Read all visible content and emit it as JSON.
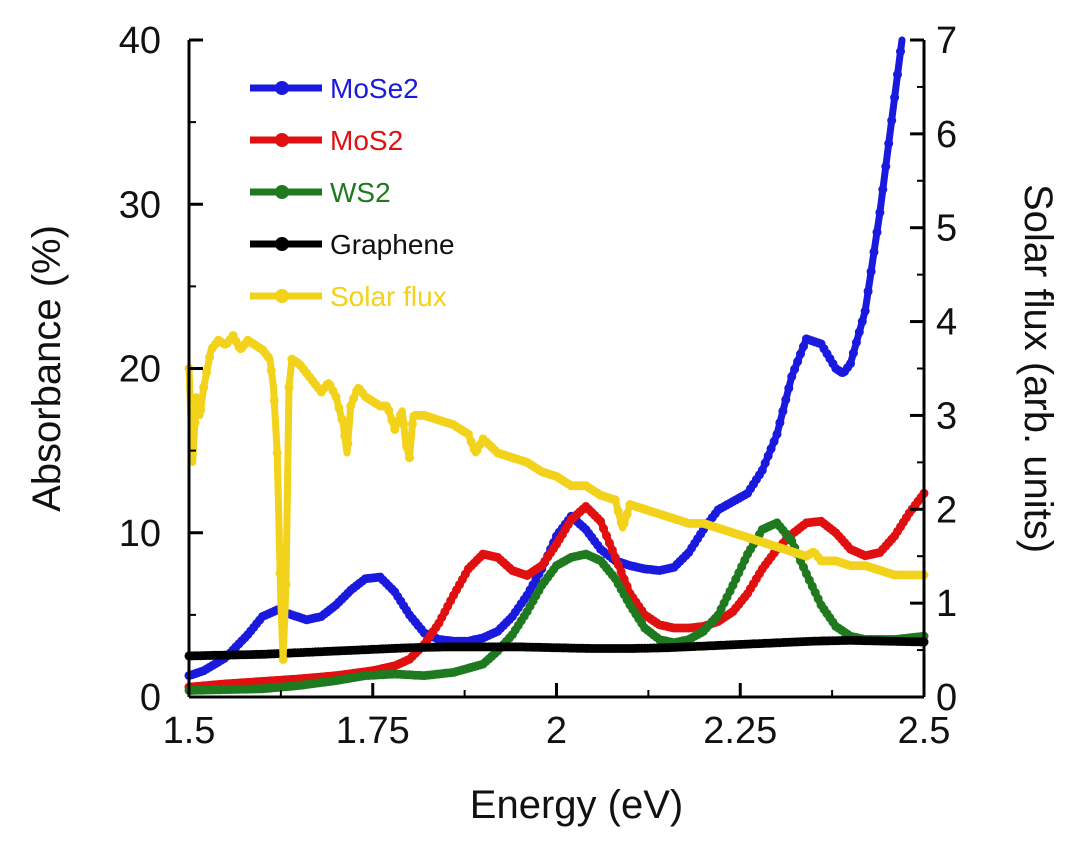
{
  "chart_data": {
    "type": "line",
    "title": "",
    "xlabel": "Energy (eV)",
    "ylabel": "Absorbance (%)",
    "y2label": "Solar flux (arb. units)",
    "xlim": [
      1.5,
      2.5
    ],
    "ylim": [
      0,
      40
    ],
    "y2lim": [
      0,
      7
    ],
    "x_ticks": [
      "1.5",
      "1.75",
      "2",
      "2.25",
      "2.5"
    ],
    "y_ticks": [
      "0",
      "10",
      "20",
      "30",
      "40"
    ],
    "y2_ticks": [
      "0",
      "1",
      "2",
      "3",
      "4",
      "5",
      "6",
      "7"
    ],
    "grid": false,
    "legend_position": "top-left",
    "series": [
      {
        "name": "MoSe2",
        "color": "#1a1adf",
        "axis": "left",
        "points": [
          [
            1.5,
            1.3
          ],
          [
            1.52,
            1.6
          ],
          [
            1.55,
            2.4
          ],
          [
            1.58,
            3.8
          ],
          [
            1.6,
            4.9
          ],
          [
            1.62,
            5.3
          ],
          [
            1.64,
            5.0
          ],
          [
            1.66,
            4.7
          ],
          [
            1.68,
            4.9
          ],
          [
            1.7,
            5.6
          ],
          [
            1.72,
            6.5
          ],
          [
            1.74,
            7.2
          ],
          [
            1.76,
            7.3
          ],
          [
            1.78,
            6.4
          ],
          [
            1.8,
            5.0
          ],
          [
            1.82,
            3.9
          ],
          [
            1.84,
            3.5
          ],
          [
            1.86,
            3.4
          ],
          [
            1.88,
            3.4
          ],
          [
            1.9,
            3.6
          ],
          [
            1.92,
            4.0
          ],
          [
            1.94,
            4.9
          ],
          [
            1.96,
            6.2
          ],
          [
            1.98,
            7.8
          ],
          [
            2.0,
            9.8
          ],
          [
            2.02,
            11.0
          ],
          [
            2.04,
            10.2
          ],
          [
            2.06,
            9.0
          ],
          [
            2.08,
            8.3
          ],
          [
            2.1,
            8.0
          ],
          [
            2.12,
            7.8
          ],
          [
            2.14,
            7.7
          ],
          [
            2.16,
            7.9
          ],
          [
            2.18,
            8.8
          ],
          [
            2.2,
            10.2
          ],
          [
            2.22,
            11.4
          ],
          [
            2.24,
            11.9
          ],
          [
            2.26,
            12.4
          ],
          [
            2.28,
            13.8
          ],
          [
            2.3,
            16.0
          ],
          [
            2.32,
            19.5
          ],
          [
            2.34,
            21.8
          ],
          [
            2.36,
            21.5
          ],
          [
            2.38,
            20.0
          ],
          [
            2.39,
            19.7
          ],
          [
            2.4,
            20.3
          ],
          [
            2.42,
            23.5
          ],
          [
            2.44,
            29.5
          ],
          [
            2.46,
            36.5
          ],
          [
            2.47,
            40
          ]
        ]
      },
      {
        "name": "MoS2",
        "color": "#e01010",
        "axis": "left",
        "points": [
          [
            1.5,
            0.6
          ],
          [
            1.55,
            0.8
          ],
          [
            1.6,
            0.95
          ],
          [
            1.65,
            1.1
          ],
          [
            1.7,
            1.3
          ],
          [
            1.75,
            1.6
          ],
          [
            1.78,
            1.9
          ],
          [
            1.8,
            2.3
          ],
          [
            1.82,
            3.2
          ],
          [
            1.84,
            4.5
          ],
          [
            1.86,
            6.2
          ],
          [
            1.88,
            7.8
          ],
          [
            1.9,
            8.7
          ],
          [
            1.92,
            8.5
          ],
          [
            1.94,
            7.7
          ],
          [
            1.96,
            7.4
          ],
          [
            1.98,
            8.0
          ],
          [
            2.0,
            9.3
          ],
          [
            2.02,
            10.8
          ],
          [
            2.04,
            11.6
          ],
          [
            2.06,
            10.7
          ],
          [
            2.08,
            8.5
          ],
          [
            2.1,
            6.3
          ],
          [
            2.12,
            5.0
          ],
          [
            2.14,
            4.4
          ],
          [
            2.16,
            4.2
          ],
          [
            2.18,
            4.2
          ],
          [
            2.2,
            4.3
          ],
          [
            2.22,
            4.6
          ],
          [
            2.24,
            5.2
          ],
          [
            2.26,
            6.3
          ],
          [
            2.28,
            7.8
          ],
          [
            2.3,
            9.0
          ],
          [
            2.32,
            9.9
          ],
          [
            2.34,
            10.6
          ],
          [
            2.36,
            10.7
          ],
          [
            2.38,
            10.0
          ],
          [
            2.4,
            9.0
          ],
          [
            2.42,
            8.6
          ],
          [
            2.44,
            8.8
          ],
          [
            2.46,
            9.8
          ],
          [
            2.48,
            11.2
          ],
          [
            2.5,
            12.4
          ]
        ]
      },
      {
        "name": "WS2",
        "color": "#1f7a1f",
        "axis": "left",
        "points": [
          [
            1.5,
            0.4
          ],
          [
            1.55,
            0.45
          ],
          [
            1.6,
            0.5
          ],
          [
            1.65,
            0.7
          ],
          [
            1.7,
            1.0
          ],
          [
            1.74,
            1.3
          ],
          [
            1.78,
            1.4
          ],
          [
            1.82,
            1.3
          ],
          [
            1.86,
            1.5
          ],
          [
            1.9,
            2.0
          ],
          [
            1.92,
            2.8
          ],
          [
            1.94,
            3.8
          ],
          [
            1.96,
            5.2
          ],
          [
            1.98,
            6.8
          ],
          [
            2.0,
            8.0
          ],
          [
            2.02,
            8.5
          ],
          [
            2.04,
            8.7
          ],
          [
            2.06,
            8.3
          ],
          [
            2.08,
            7.2
          ],
          [
            2.1,
            5.6
          ],
          [
            2.12,
            4.2
          ],
          [
            2.14,
            3.5
          ],
          [
            2.16,
            3.3
          ],
          [
            2.18,
            3.5
          ],
          [
            2.2,
            4.0
          ],
          [
            2.22,
            5.0
          ],
          [
            2.24,
            6.8
          ],
          [
            2.26,
            8.7
          ],
          [
            2.28,
            10.2
          ],
          [
            2.3,
            10.6
          ],
          [
            2.32,
            9.5
          ],
          [
            2.34,
            7.5
          ],
          [
            2.36,
            5.6
          ],
          [
            2.38,
            4.3
          ],
          [
            2.4,
            3.7
          ],
          [
            2.42,
            3.5
          ],
          [
            2.44,
            3.5
          ],
          [
            2.46,
            3.5
          ],
          [
            2.48,
            3.6
          ],
          [
            2.5,
            3.7
          ]
        ]
      },
      {
        "name": "Graphene",
        "color": "#000000",
        "axis": "left",
        "points": [
          [
            1.5,
            2.5
          ],
          [
            1.55,
            2.55
          ],
          [
            1.6,
            2.6
          ],
          [
            1.65,
            2.7
          ],
          [
            1.7,
            2.8
          ],
          [
            1.75,
            2.9
          ],
          [
            1.8,
            3.0
          ],
          [
            1.85,
            3.05
          ],
          [
            1.9,
            3.05
          ],
          [
            1.95,
            3.05
          ],
          [
            2.0,
            3.0
          ],
          [
            2.05,
            2.95
          ],
          [
            2.1,
            2.95
          ],
          [
            2.15,
            3.0
          ],
          [
            2.2,
            3.1
          ],
          [
            2.25,
            3.2
          ],
          [
            2.3,
            3.3
          ],
          [
            2.35,
            3.4
          ],
          [
            2.4,
            3.45
          ],
          [
            2.45,
            3.4
          ],
          [
            2.5,
            3.35
          ]
        ]
      },
      {
        "name": "Solar flux",
        "color": "#f2d21a",
        "axis": "right",
        "points": [
          [
            1.5,
            3.5
          ],
          [
            1.505,
            2.5
          ],
          [
            1.51,
            3.2
          ],
          [
            1.515,
            3.0
          ],
          [
            1.52,
            3.3
          ],
          [
            1.53,
            3.7
          ],
          [
            1.54,
            3.8
          ],
          [
            1.55,
            3.75
          ],
          [
            1.56,
            3.85
          ],
          [
            1.57,
            3.7
          ],
          [
            1.58,
            3.8
          ],
          [
            1.59,
            3.75
          ],
          [
            1.6,
            3.7
          ],
          [
            1.61,
            3.6
          ],
          [
            1.615,
            3.3
          ],
          [
            1.62,
            2.6
          ],
          [
            1.625,
            1.0
          ],
          [
            1.628,
            0.4
          ],
          [
            1.632,
            1.2
          ],
          [
            1.636,
            3.3
          ],
          [
            1.64,
            3.6
          ],
          [
            1.65,
            3.55
          ],
          [
            1.66,
            3.45
          ],
          [
            1.67,
            3.35
          ],
          [
            1.68,
            3.25
          ],
          [
            1.69,
            3.35
          ],
          [
            1.7,
            3.2
          ],
          [
            1.71,
            2.9
          ],
          [
            1.715,
            2.6
          ],
          [
            1.72,
            3.1
          ],
          [
            1.73,
            3.3
          ],
          [
            1.74,
            3.2
          ],
          [
            1.75,
            3.15
          ],
          [
            1.76,
            3.1
          ],
          [
            1.77,
            3.1
          ],
          [
            1.78,
            2.85
          ],
          [
            1.79,
            3.05
          ],
          [
            1.795,
            2.7
          ],
          [
            1.8,
            2.55
          ],
          [
            1.805,
            3.0
          ],
          [
            1.82,
            3.0
          ],
          [
            1.84,
            2.95
          ],
          [
            1.86,
            2.9
          ],
          [
            1.88,
            2.8
          ],
          [
            1.89,
            2.6
          ],
          [
            1.9,
            2.75
          ],
          [
            1.92,
            2.6
          ],
          [
            1.94,
            2.55
          ],
          [
            1.96,
            2.5
          ],
          [
            1.98,
            2.4
          ],
          [
            2.0,
            2.35
          ],
          [
            2.02,
            2.25
          ],
          [
            2.04,
            2.25
          ],
          [
            2.06,
            2.15
          ],
          [
            2.08,
            2.1
          ],
          [
            2.09,
            1.8
          ],
          [
            2.1,
            2.05
          ],
          [
            2.12,
            2.0
          ],
          [
            2.14,
            1.95
          ],
          [
            2.16,
            1.9
          ],
          [
            2.18,
            1.85
          ],
          [
            2.2,
            1.85
          ],
          [
            2.22,
            1.8
          ],
          [
            2.24,
            1.75
          ],
          [
            2.26,
            1.7
          ],
          [
            2.28,
            1.65
          ],
          [
            2.3,
            1.6
          ],
          [
            2.32,
            1.55
          ],
          [
            2.34,
            1.5
          ],
          [
            2.35,
            1.55
          ],
          [
            2.36,
            1.45
          ],
          [
            2.38,
            1.45
          ],
          [
            2.4,
            1.4
          ],
          [
            2.42,
            1.4
          ],
          [
            2.44,
            1.35
          ],
          [
            2.46,
            1.3
          ],
          [
            2.48,
            1.3
          ],
          [
            2.5,
            1.3
          ]
        ]
      }
    ]
  }
}
